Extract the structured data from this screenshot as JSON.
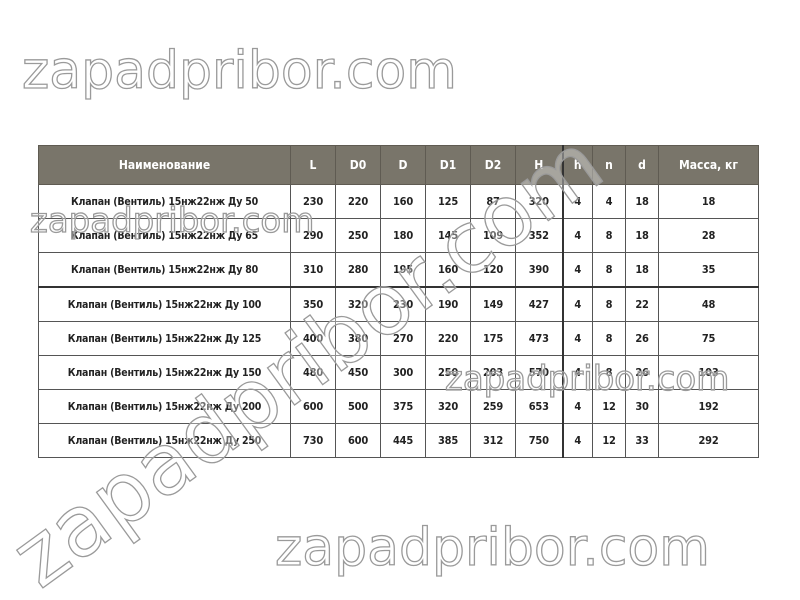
{
  "table": {
    "headers": [
      "Наименование",
      "L",
      "D0",
      "D",
      "D1",
      "D2",
      "H",
      "h",
      "n",
      "d",
      "Масса, кг"
    ],
    "rows": [
      [
        "Клапан (Вентиль) 15нж22нж Ду 50",
        "230",
        "220",
        "160",
        "125",
        "87",
        "320",
        "4",
        "4",
        "18",
        "18"
      ],
      [
        "Клапан (Вентиль) 15нж22нж Ду 65",
        "290",
        "250",
        "180",
        "145",
        "109",
        "352",
        "4",
        "8",
        "18",
        "28"
      ],
      [
        "Клапан (Вентиль) 15нж22нж Ду 80",
        "310",
        "280",
        "195",
        "160",
        "120",
        "390",
        "4",
        "8",
        "18",
        "35"
      ],
      [
        "Клапан (Вентиль) 15нж22нж Ду 100",
        "350",
        "320",
        "230",
        "190",
        "149",
        "427",
        "4",
        "8",
        "22",
        "48"
      ],
      [
        "Клапан (Вентиль) 15нж22нж Ду 125",
        "400",
        "380",
        "270",
        "220",
        "175",
        "473",
        "4",
        "8",
        "26",
        "75"
      ],
      [
        "Клапан (Вентиль) 15нж22нж Ду 150",
        "480",
        "450",
        "300",
        "250",
        "203",
        "570",
        "4",
        "8",
        "26",
        "103"
      ],
      [
        "Клапан (Вентиль) 15нж22нж Ду 200",
        "600",
        "500",
        "375",
        "320",
        "259",
        "653",
        "4",
        "12",
        "30",
        "192"
      ],
      [
        "Клапан (Вентиль) 15нж22нж Ду 250",
        "730",
        "600",
        "445",
        "385",
        "312",
        "750",
        "4",
        "12",
        "33",
        "292"
      ]
    ]
  },
  "watermark": "zapadpribor.com",
  "colors": {
    "header_bg": "#79756a",
    "header_text": "#ffffff"
  }
}
